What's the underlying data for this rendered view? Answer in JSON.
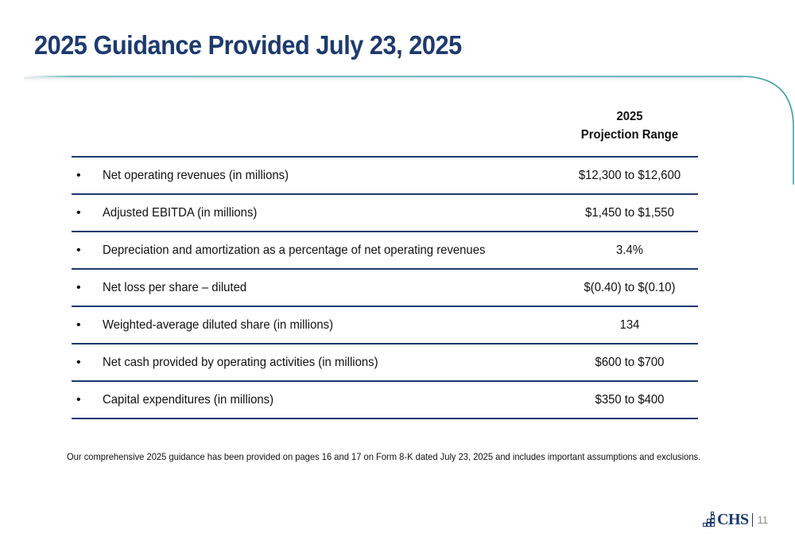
{
  "slide": {
    "title": "2025 Guidance Provided July 23, 2025",
    "page_number": "11"
  },
  "table": {
    "header_line1": "2025",
    "header_line2": "Projection Range",
    "bullet": "•",
    "rows": [
      {
        "label": "Net operating revenues (in millions)",
        "value": "$12,300 to $12,600"
      },
      {
        "label": "Adjusted EBITDA (in millions)",
        "value": "$1,450 to $1,550"
      },
      {
        "label": "Depreciation and amortization as a percentage of net operating revenues",
        "value": "3.4%"
      },
      {
        "label": "Net loss per share – diluted",
        "value": "$(0.40) to $(0.10)"
      },
      {
        "label": "Weighted-average diluted share (in millions)",
        "value": "134"
      },
      {
        "label": "Net cash provided by operating activities (in millions)",
        "value": "$600 to $700"
      },
      {
        "label": "Capital expenditures (in millions)",
        "value": "$350 to $400"
      }
    ]
  },
  "footnote": "Our comprehensive 2025 guidance has been provided on pages 16 and 17 on Form 8-K dated July 23, 2025 and includes important assumptions and exclusions.",
  "logo": {
    "text": "CHS"
  },
  "colors": {
    "navy": "#1d3a6e",
    "teal_line": "#3aa0a8"
  }
}
